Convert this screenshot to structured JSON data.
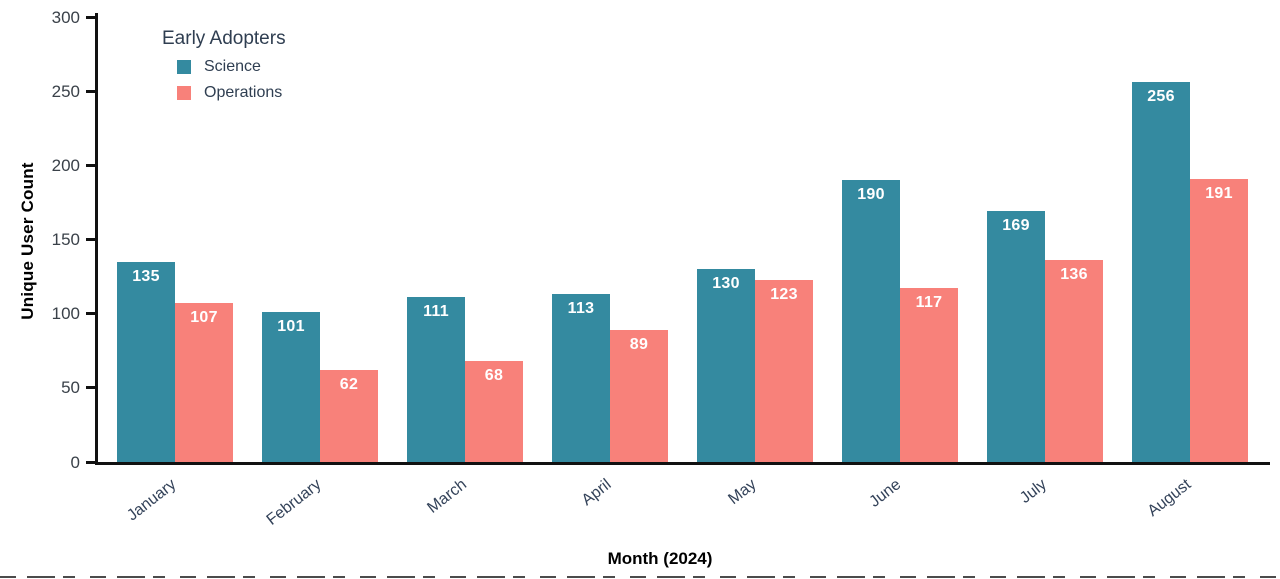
{
  "chart_data": {
    "type": "bar",
    "legend_title": "Early Adopters",
    "categories": [
      "January",
      "February",
      "March",
      "April",
      "May",
      "June",
      "July",
      "August"
    ],
    "series": [
      {
        "name": "Science",
        "color": "#348AA0",
        "values": [
          135,
          101,
          111,
          113,
          130,
          190,
          169,
          256
        ]
      },
      {
        "name": "Operations",
        "color": "#F8817A",
        "values": [
          107,
          62,
          68,
          89,
          123,
          117,
          136,
          191
        ]
      }
    ],
    "xlabel": "Month (2024)",
    "ylabel": "Unique User Count",
    "ylim": [
      0,
      300
    ],
    "yticks": [
      0,
      50,
      100,
      150,
      200,
      250,
      300
    ],
    "grid": false,
    "legend_position": "top-left",
    "bar_label_color": "#ffffff",
    "axis_color": "#111111",
    "tick_label_color": "#3a4149",
    "x_tick_label_color": "#334259"
  }
}
